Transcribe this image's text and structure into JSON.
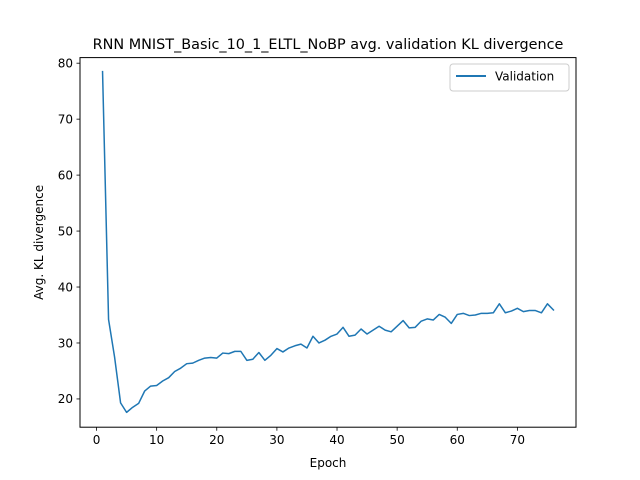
{
  "chart_data": {
    "type": "line",
    "title": "RNN MNIST_Basic_10_1_ELTL_NoBP avg. validation KL divergence",
    "xlabel": "Epoch",
    "ylabel": "Avg. KL divergence",
    "xlim": [
      -2.75,
      79.75
    ],
    "ylim": [
      14.95,
      81.0
    ],
    "xticks": [
      0,
      10,
      20,
      30,
      40,
      50,
      60,
      70
    ],
    "yticks": [
      20,
      30,
      40,
      50,
      60,
      70,
      80
    ],
    "grid": false,
    "legend_position": "top-right",
    "series": [
      {
        "name": "Validation",
        "color": "#1f77b4",
        "x": [
          1,
          2,
          3,
          4,
          5,
          6,
          7,
          8,
          9,
          10,
          11,
          12,
          13,
          14,
          15,
          16,
          17,
          18,
          19,
          20,
          21,
          22,
          23,
          24,
          25,
          26,
          27,
          28,
          29,
          30,
          31,
          32,
          33,
          34,
          35,
          36,
          37,
          38,
          39,
          40,
          41,
          42,
          43,
          44,
          45,
          46,
          47,
          48,
          49,
          50,
          51,
          52,
          53,
          54,
          55,
          56,
          57,
          58,
          59,
          60,
          61,
          62,
          63,
          64,
          65,
          66,
          67,
          68,
          69,
          70,
          71,
          72,
          73,
          74,
          75,
          76
        ],
        "y": [
          78.5,
          34.2,
          27.5,
          19.3,
          17.6,
          18.5,
          19.2,
          21.4,
          22.3,
          22.4,
          23.2,
          23.8,
          24.9,
          25.5,
          26.3,
          26.4,
          26.9,
          27.3,
          27.4,
          27.3,
          28.2,
          28.1,
          28.5,
          28.5,
          26.9,
          27.1,
          28.3,
          26.9,
          27.8,
          29.0,
          28.4,
          29.1,
          29.5,
          29.8,
          29.1,
          31.2,
          30.0,
          30.5,
          31.2,
          31.6,
          32.8,
          31.2,
          31.4,
          32.5,
          31.6,
          32.3,
          33.0,
          32.3,
          32.0,
          33.0,
          34.0,
          32.7,
          32.8,
          33.9,
          34.3,
          34.1,
          35.1,
          34.6,
          33.5,
          35.1,
          35.3,
          34.9,
          35.0,
          35.3,
          35.3,
          35.4,
          37.0,
          35.4,
          35.7,
          36.2,
          35.6,
          35.8,
          35.8,
          35.4,
          37.0,
          35.9
        ]
      }
    ]
  }
}
